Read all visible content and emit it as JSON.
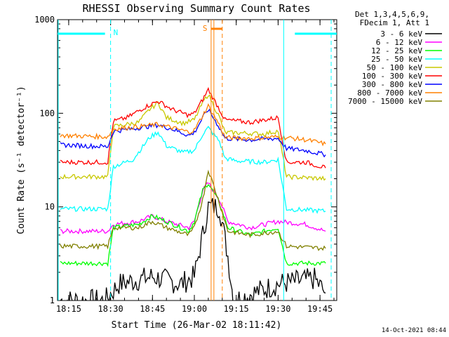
{
  "chart_data": {
    "type": "line",
    "title": "RHESSI Observing Summary Count Rates",
    "xlabel": "Start Time (26-Mar-02 18:11:42)",
    "ylabel": "Count Rate (s⁻¹ detector⁻¹)",
    "ylim": [
      1,
      1000
    ],
    "y_log": true,
    "xlim_minutes": [
      "18:11",
      "19:51"
    ],
    "x_ticks": [
      "18:15",
      "18:30",
      "18:45",
      "19:00",
      "19:15",
      "19:30",
      "19:45"
    ],
    "y_ticks": [
      "1",
      "10",
      "100",
      "1000"
    ],
    "legend_header": [
      "Det 1,3,4,5,6,9,",
      "FDecim 1, Att 1"
    ],
    "grid": false,
    "legend_position": "right",
    "annotations": [
      {
        "label": "N",
        "color": "#00ffff"
      },
      {
        "label": "S",
        "color": "#ff8000"
      }
    ],
    "series": [
      {
        "name": "3 - 6 keV",
        "color": "#000000",
        "points": [
          [
            "18:12",
            1
          ],
          [
            "18:28",
            1
          ],
          [
            "18:33",
            1.5
          ],
          [
            "18:45",
            1.8
          ],
          [
            "18:55",
            1.5
          ],
          [
            "19:00",
            1.8
          ],
          [
            "19:03",
            5
          ],
          [
            "19:05",
            10
          ],
          [
            "19:09",
            10
          ],
          [
            "19:12",
            3
          ],
          [
            "19:14",
            1
          ],
          [
            "19:30",
            1.5
          ],
          [
            "19:43",
            1.7
          ],
          [
            "19:47",
            1.2
          ]
        ]
      },
      {
        "name": "6 - 12 keV",
        "color": "#ff00ff",
        "points": [
          [
            "18:12",
            5.5
          ],
          [
            "18:29",
            5.5
          ],
          [
            "18:31",
            6.5
          ],
          [
            "18:40",
            7
          ],
          [
            "18:45",
            8
          ],
          [
            "18:50",
            7
          ],
          [
            "18:58",
            6
          ],
          [
            "19:00",
            7
          ],
          [
            "19:03",
            15
          ],
          [
            "19:05",
            18
          ],
          [
            "19:09",
            12
          ],
          [
            "19:12",
            7
          ],
          [
            "19:20",
            6
          ],
          [
            "19:30",
            7
          ],
          [
            "19:40",
            6.5
          ],
          [
            "19:47",
            5.5
          ]
        ]
      },
      {
        "name": "12 - 25 keV",
        "color": "#00ff00",
        "points": [
          [
            "18:12",
            2.5
          ],
          [
            "18:29",
            2.5
          ],
          [
            "18:31",
            6
          ],
          [
            "18:40",
            6.5
          ],
          [
            "18:45",
            8
          ],
          [
            "18:50",
            7
          ],
          [
            "18:58",
            5.5
          ],
          [
            "19:00",
            7
          ],
          [
            "19:03",
            15
          ],
          [
            "19:05",
            18
          ],
          [
            "19:09",
            11
          ],
          [
            "19:12",
            6
          ],
          [
            "19:20",
            5
          ],
          [
            "19:30",
            6
          ],
          [
            "19:33",
            2.5
          ],
          [
            "19:47",
            2.5
          ]
        ]
      },
      {
        "name": "25 - 50 keV",
        "color": "#00ffff",
        "points": [
          [
            "18:12",
            9.5
          ],
          [
            "18:29",
            9.5
          ],
          [
            "18:31",
            27
          ],
          [
            "18:38",
            32
          ],
          [
            "18:44",
            55
          ],
          [
            "18:47",
            63
          ],
          [
            "18:50",
            45
          ],
          [
            "18:56",
            38
          ],
          [
            "19:00",
            40
          ],
          [
            "19:03",
            60
          ],
          [
            "19:05",
            70
          ],
          [
            "19:09",
            50
          ],
          [
            "19:11",
            33
          ],
          [
            "19:15",
            31
          ],
          [
            "19:25",
            30
          ],
          [
            "19:30",
            32
          ],
          [
            "19:33",
            9.5
          ],
          [
            "19:47",
            9
          ]
        ]
      },
      {
        "name": "50 - 100 keV",
        "color": "#c8c800",
        "points": [
          [
            "18:12",
            21
          ],
          [
            "18:29",
            21
          ],
          [
            "18:31",
            72
          ],
          [
            "18:40",
            80
          ],
          [
            "18:44",
            110
          ],
          [
            "18:47",
            130
          ],
          [
            "18:50",
            90
          ],
          [
            "18:56",
            78
          ],
          [
            "19:00",
            85
          ],
          [
            "19:03",
            130
          ],
          [
            "19:05",
            160
          ],
          [
            "19:09",
            90
          ],
          [
            "19:11",
            62
          ],
          [
            "19:15",
            62
          ],
          [
            "19:25",
            60
          ],
          [
            "19:30",
            65
          ],
          [
            "19:33",
            21
          ],
          [
            "19:47",
            20
          ]
        ]
      },
      {
        "name": "100 - 300 keV",
        "color": "#ff0000",
        "points": [
          [
            "18:12",
            30
          ],
          [
            "18:29",
            30
          ],
          [
            "18:31",
            82
          ],
          [
            "18:36",
            90
          ],
          [
            "18:42",
            115
          ],
          [
            "18:47",
            135
          ],
          [
            "18:52",
            110
          ],
          [
            "18:58",
            95
          ],
          [
            "19:00",
            100
          ],
          [
            "19:03",
            140
          ],
          [
            "19:05",
            180
          ],
          [
            "19:09",
            110
          ],
          [
            "19:11",
            85
          ],
          [
            "19:20",
            80
          ],
          [
            "19:30",
            90
          ],
          [
            "19:33",
            30
          ],
          [
            "19:40",
            30
          ],
          [
            "19:47",
            26
          ]
        ]
      },
      {
        "name": "300 - 800 keV",
        "color": "#0000ff",
        "points": [
          [
            "18:12",
            46
          ],
          [
            "18:29",
            44
          ],
          [
            "18:31",
            64
          ],
          [
            "18:40",
            70
          ],
          [
            "18:47",
            75
          ],
          [
            "18:52",
            68
          ],
          [
            "18:58",
            58
          ],
          [
            "19:00",
            62
          ],
          [
            "19:03",
            90
          ],
          [
            "19:05",
            110
          ],
          [
            "19:09",
            70
          ],
          [
            "19:11",
            54
          ],
          [
            "19:20",
            52
          ],
          [
            "19:30",
            54
          ],
          [
            "19:33",
            42
          ],
          [
            "19:40",
            40
          ],
          [
            "19:47",
            36
          ]
        ]
      },
      {
        "name": "800 - 7000 keV",
        "color": "#ff8000",
        "points": [
          [
            "18:12",
            58
          ],
          [
            "18:29",
            56
          ],
          [
            "18:31",
            68
          ],
          [
            "18:40",
            72
          ],
          [
            "18:47",
            76
          ],
          [
            "18:52",
            70
          ],
          [
            "18:58",
            63
          ],
          [
            "19:00",
            66
          ],
          [
            "19:03",
            95
          ],
          [
            "19:05",
            120
          ],
          [
            "19:09",
            75
          ],
          [
            "19:11",
            55
          ],
          [
            "19:20",
            54
          ],
          [
            "19:30",
            56
          ],
          [
            "19:33",
            55
          ],
          [
            "19:40",
            52
          ],
          [
            "19:47",
            47
          ]
        ]
      },
      {
        "name": "7000 - 15000 keV",
        "color": "#808000",
        "points": [
          [
            "18:12",
            3.8
          ],
          [
            "18:29",
            3.8
          ],
          [
            "18:31",
            6
          ],
          [
            "18:40",
            6
          ],
          [
            "18:45",
            7
          ],
          [
            "18:50",
            6
          ],
          [
            "18:58",
            5
          ],
          [
            "19:00",
            6
          ],
          [
            "19:03",
            12
          ],
          [
            "19:05",
            25
          ],
          [
            "19:09",
            11
          ],
          [
            "19:12",
            5.5
          ],
          [
            "19:20",
            5
          ],
          [
            "19:30",
            5.5
          ],
          [
            "19:33",
            3.8
          ],
          [
            "19:47",
            3.6
          ]
        ]
      }
    ]
  },
  "footer": {
    "timestamp": "14-Oct-2021 08:44"
  }
}
